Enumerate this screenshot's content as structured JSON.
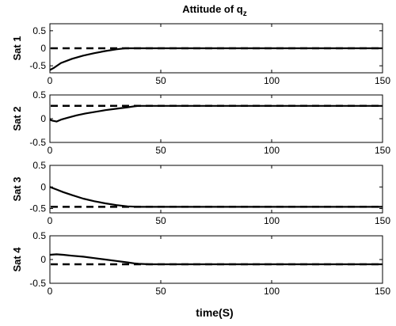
{
  "chart_data": {
    "type": "line",
    "title": "Attitude of q",
    "title_subscript": "z",
    "xlabel": "time(S)",
    "xlim": [
      0,
      150
    ],
    "xticks": [
      "0",
      "50",
      "100",
      "150"
    ],
    "panels": [
      {
        "ylabel": "Sat 1",
        "ylim": [
          -0.7,
          0.7
        ],
        "yticks": [
          "0.5",
          "0",
          "-0.5"
        ],
        "reference": 0,
        "series": [
          {
            "style": "solid",
            "x": [
              0,
              2,
              5,
              10,
              15,
              20,
              25,
              30,
              34,
              38,
              45,
              60,
              80,
              100,
              120,
              150
            ],
            "y": [
              -0.62,
              -0.55,
              -0.42,
              -0.3,
              -0.21,
              -0.14,
              -0.08,
              -0.03,
              0.0,
              0.0,
              0.0,
              0.0,
              0.0,
              0.0,
              0.0,
              0.0
            ]
          }
        ]
      },
      {
        "ylabel": "Sat 2",
        "ylim": [
          -0.5,
          0.5
        ],
        "yticks": [
          "0.5",
          "0",
          "-0.5"
        ],
        "reference": 0.27,
        "series": [
          {
            "style": "solid",
            "x": [
              0,
              1,
              3,
              5,
              8,
              12,
              16,
              20,
              25,
              30,
              35,
              38,
              40,
              45,
              60,
              80,
              100,
              120,
              150
            ],
            "y": [
              -0.02,
              -0.04,
              -0.06,
              -0.02,
              0.02,
              0.07,
              0.11,
              0.14,
              0.18,
              0.21,
              0.24,
              0.26,
              0.27,
              0.27,
              0.27,
              0.27,
              0.27,
              0.27,
              0.27
            ]
          }
        ]
      },
      {
        "ylabel": "Sat 3",
        "ylim": [
          -0.6,
          0.5
        ],
        "yticks": [
          "0.5",
          "0",
          "-0.5"
        ],
        "reference": -0.46,
        "series": [
          {
            "style": "solid",
            "x": [
              0,
              3,
              6,
              10,
              15,
              20,
              25,
              30,
              35,
              40,
              45,
              60,
              80,
              100,
              120,
              150
            ],
            "y": [
              0.0,
              -0.06,
              -0.12,
              -0.19,
              -0.27,
              -0.33,
              -0.38,
              -0.42,
              -0.45,
              -0.46,
              -0.46,
              -0.46,
              -0.46,
              -0.46,
              -0.46,
              -0.46
            ]
          }
        ]
      },
      {
        "ylabel": "Sat 4",
        "ylim": [
          -0.5,
          0.5
        ],
        "yticks": [
          "0.5",
          "0",
          "-0.5"
        ],
        "reference": -0.1,
        "series": [
          {
            "style": "solid",
            "x": [
              0,
              3,
              6,
              10,
              15,
              20,
              25,
              30,
              35,
              38,
              40,
              45,
              60,
              80,
              100,
              120,
              150
            ],
            "y": [
              0.1,
              0.11,
              0.1,
              0.08,
              0.06,
              0.03,
              0.0,
              -0.03,
              -0.06,
              -0.08,
              -0.09,
              -0.1,
              -0.1,
              -0.1,
              -0.1,
              -0.1,
              -0.1
            ]
          }
        ]
      }
    ]
  }
}
